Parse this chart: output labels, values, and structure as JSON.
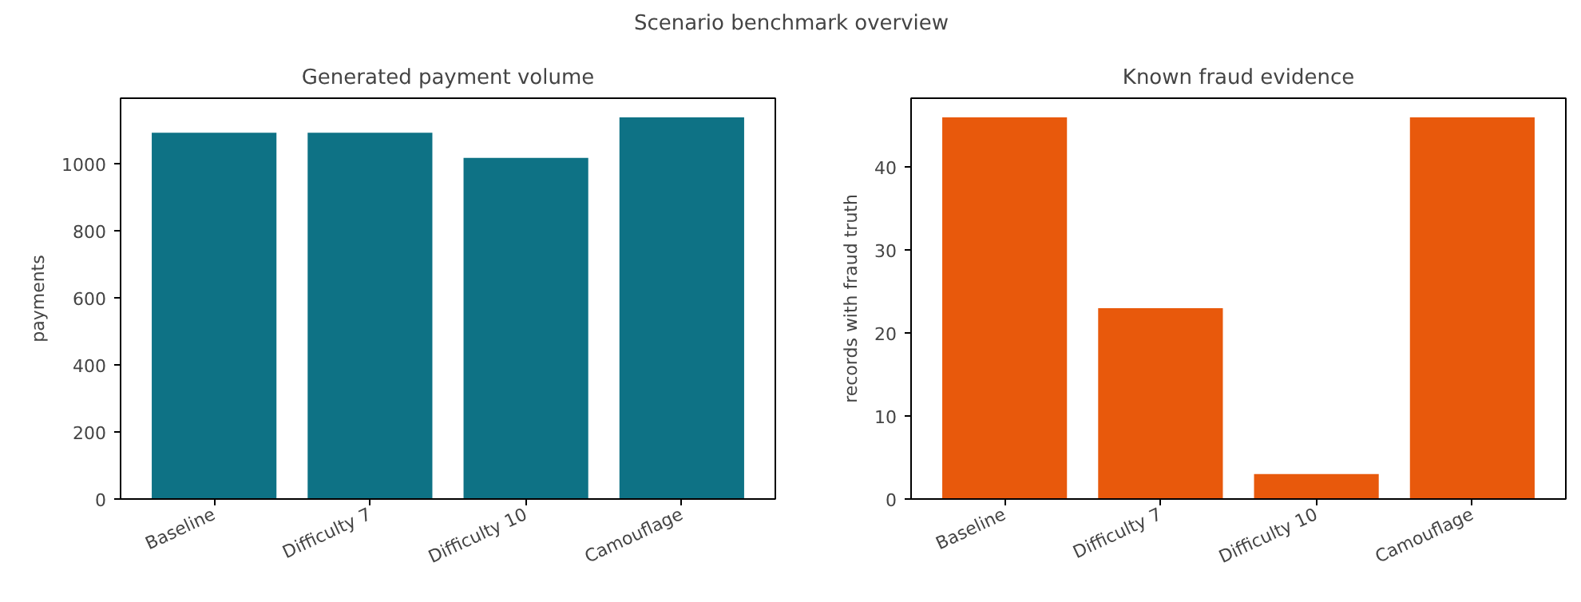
{
  "chart_data": [
    {
      "type": "other",
      "title": "Scenario benchmark overview"
    },
    {
      "type": "bar",
      "title": "Generated payment volume",
      "ylabel": "payments",
      "categories": [
        "Baseline",
        "Difficulty 7",
        "Difficulty 10",
        "Camouflage"
      ],
      "values": [
        1092,
        1092,
        1017,
        1138
      ],
      "color": "#0e7285",
      "ylim": [
        0,
        1195
      ],
      "yticks": [
        0,
        200,
        400,
        600,
        800,
        1000
      ],
      "grid": false
    },
    {
      "type": "bar",
      "title": "Known fraud evidence",
      "ylabel": "records with fraud truth",
      "categories": [
        "Baseline",
        "Difficulty 7",
        "Difficulty 10",
        "Camouflage"
      ],
      "values": [
        46,
        23,
        3,
        46
      ],
      "color": "#e8590c",
      "ylim": [
        0,
        48.3
      ],
      "yticks": [
        0,
        10,
        20,
        30,
        40
      ],
      "grid": false
    }
  ]
}
